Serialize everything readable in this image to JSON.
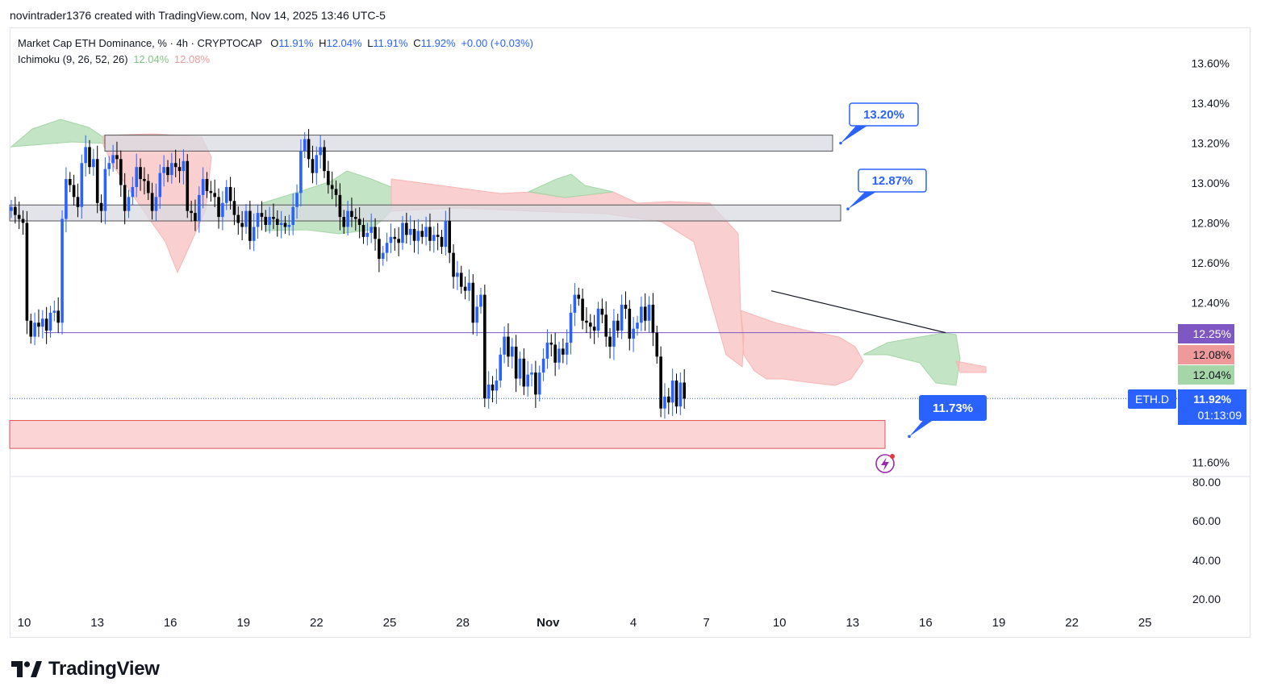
{
  "header": {
    "credit": "novintrader1376 created with TradingView.com, Nov 14, 2025 13:46 UTC-5"
  },
  "legend": {
    "symbol": "Market Cap ETH Dominance, % · 4h · CRYPTOCAP",
    "o_label": "O",
    "o_value": "11.91%",
    "h_label": "H",
    "h_value": "12.04%",
    "l_label": "L",
    "l_value": "11.91%",
    "c_label": "C",
    "c_value": "11.92%",
    "change": "+0.00 (+0.03%)",
    "indicator": "Ichimoku (9, 26, 52, 26)",
    "ind_value1": "12.04%",
    "ind_value2": "12.08%"
  },
  "colors": {
    "up": "#2962ff",
    "down": "#000000",
    "cloud_green": "#a5d6a7",
    "cloud_red": "#f8b5b5",
    "purple": "#7e57c2",
    "zone": "#f9c5c8",
    "zone_border": "#e0545c",
    "box": "#d1d4dc"
  },
  "chart_data": {
    "type": "candlestick",
    "title": "Market Cap ETH Dominance, % · 4h · CRYPTOCAP",
    "ylim": [
      11.46,
      13.7
    ],
    "price_ticks": [
      "13.60%",
      "13.40%",
      "13.20%",
      "13.00%",
      "12.80%",
      "12.60%",
      "12.40%",
      "11.60%"
    ],
    "volume_ticks": [
      "80.00",
      "60.00",
      "40.00",
      "20.00"
    ],
    "date_ticks": [
      {
        "label": "10",
        "day": 0
      },
      {
        "label": "13",
        "day": 3
      },
      {
        "label": "16",
        "day": 6
      },
      {
        "label": "19",
        "day": 9
      },
      {
        "label": "22",
        "day": 12
      },
      {
        "label": "25",
        "day": 15
      },
      {
        "label": "28",
        "day": 18
      },
      {
        "label": "Nov",
        "day": 21.5
      },
      {
        "label": "4",
        "day": 25
      },
      {
        "label": "7",
        "day": 28
      },
      {
        "label": "10",
        "day": 31
      },
      {
        "label": "13",
        "day": 34
      },
      {
        "label": "16",
        "day": 37
      },
      {
        "label": "19",
        "day": 40
      },
      {
        "label": "22",
        "day": 43
      },
      {
        "label": "25",
        "day": 46
      }
    ],
    "closes": [
      12.88,
      12.84,
      12.82,
      12.8,
      12.31,
      12.23,
      12.3,
      12.28,
      12.32,
      12.26,
      12.35,
      12.36,
      12.3,
      12.82,
      13.02,
      12.99,
      12.93,
      12.88,
      13.1,
      13.18,
      13.08,
      13.12,
      12.9,
      12.86,
      13.07,
      13.1,
      13.14,
      13.12,
      12.99,
      12.86,
      12.93,
      12.98,
      13.08,
      13.02,
      13.01,
      12.95,
      12.86,
      12.93,
      13.05,
      13.08,
      13.04,
      13.1,
      13.08,
      13.06,
      13.11,
      12.86,
      12.85,
      12.81,
      12.94,
      13.02,
      12.96,
      12.95,
      12.93,
      12.83,
      12.9,
      12.98,
      12.91,
      12.84,
      12.8,
      12.78,
      12.86,
      12.71,
      12.78,
      12.85,
      12.83,
      12.79,
      12.83,
      12.82,
      12.79,
      12.8,
      12.78,
      12.79,
      12.88,
      12.95,
      13.16,
      13.22,
      13.12,
      13.05,
      13.14,
      13.18,
      13.06,
      12.99,
      12.97,
      12.94,
      12.83,
      12.78,
      12.86,
      12.83,
      12.82,
      12.79,
      12.73,
      12.75,
      12.78,
      12.72,
      12.62,
      12.65,
      12.7,
      12.73,
      12.72,
      12.7,
      12.8,
      12.74,
      12.77,
      12.71,
      12.76,
      12.73,
      12.78,
      12.71,
      12.74,
      12.73,
      12.68,
      12.81,
      12.65,
      12.53,
      12.55,
      12.48,
      12.46,
      12.5,
      12.3,
      12.38,
      12.44,
      11.92,
      11.99,
      11.96,
      12.01,
      12.14,
      12.23,
      12.13,
      12.18,
      12.02,
      12.12,
      11.98,
      12.04,
      12.05,
      11.94,
      12.05,
      12.12,
      12.2,
      12.19,
      12.1,
      12.17,
      12.14,
      12.2,
      12.35,
      12.44,
      12.42,
      12.31,
      12.3,
      12.28,
      12.26,
      12.37,
      12.34,
      12.23,
      12.18,
      12.31,
      12.26,
      12.39,
      12.37,
      12.22,
      12.27,
      12.3,
      12.38,
      12.31,
      12.39,
      12.25,
      12.13,
      11.87,
      11.93,
      11.9,
      12.01,
      11.88,
      12.0,
      11.92
    ],
    "tenkan_kijun_note": "Ichimoku cloud shown as shaded spans; green = bullish, red = bearish",
    "zones": [
      {
        "label": "resistance box",
        "low": 13.16,
        "high": 13.24
      },
      {
        "label": "support/resistance box",
        "low": 12.81,
        "high": 12.89
      },
      {
        "label": "demand zone",
        "low": 11.67,
        "high": 11.81
      }
    ],
    "horizontal_line": {
      "value": 12.25,
      "color": "#7e57c2"
    },
    "trendline": {
      "from": {
        "day": 31,
        "value": 12.46
      },
      "to": {
        "day": 38,
        "value": 12.25
      }
    },
    "callouts": [
      {
        "label": "13.20%",
        "value": 13.2
      },
      {
        "label": "12.87%",
        "value": 12.87
      },
      {
        "label": "11.73%",
        "value": 11.73
      }
    ],
    "price_badges": [
      {
        "label": "12.25%",
        "value": 12.25,
        "color": "#7e57c2"
      },
      {
        "label": "12.08%",
        "value": 12.08,
        "color": "#ef9a9a"
      },
      {
        "label": "12.04%",
        "value": 12.04,
        "color": "#a5d6a7"
      }
    ],
    "current": {
      "symbol": "ETH.D",
      "price": "11.92%",
      "countdown": "01:13:09",
      "value": 11.92
    }
  },
  "branding": {
    "logo_text": "TradingView"
  }
}
